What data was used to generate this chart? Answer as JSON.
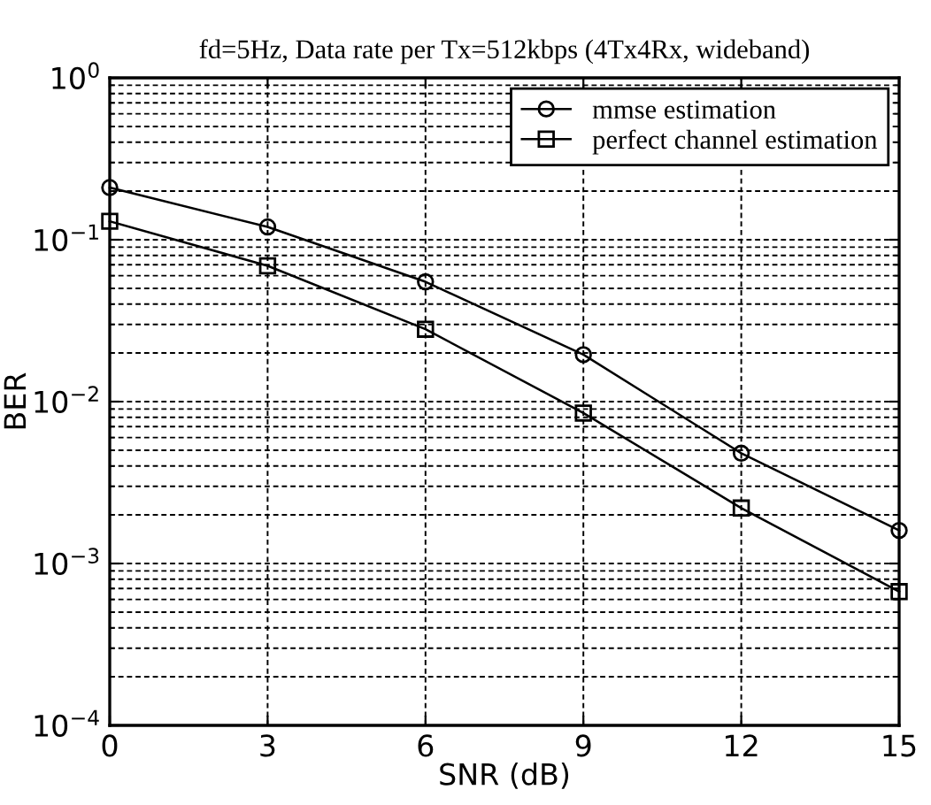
{
  "chart_data": {
    "type": "line",
    "title": "fd=5Hz, Data rate per Tx=512kbps (4Tx4Rx, wideband)",
    "xlabel": "SNR (dB)",
    "ylabel": "BER",
    "x": [
      0,
      3,
      6,
      9,
      12,
      15
    ],
    "series": [
      {
        "name": "mmse estimation",
        "color": "#000000",
        "marker": "circle",
        "values": [
          0.21,
          0.12,
          0.055,
          0.0195,
          0.0048,
          0.0016
        ]
      },
      {
        "name": "perfect channel estimation",
        "color": "#000000",
        "marker": "square",
        "values": [
          0.13,
          0.069,
          0.028,
          0.0085,
          0.0022,
          0.00067
        ]
      }
    ],
    "log": "y",
    "xlim": [
      0,
      15
    ],
    "xticks": [
      0,
      3,
      6,
      9,
      12,
      15
    ],
    "ylim": [
      0.0001,
      1
    ],
    "yticks": [
      {
        "value": 0.0001,
        "label": "10$^{−4}$"
      },
      {
        "value": 0.001,
        "label": "10$^{−3}$"
      },
      {
        "value": 0.01,
        "label": "10$^{−2}$"
      },
      {
        "value": 0.1,
        "label": "10$^{−1}$"
      },
      {
        "value": 1,
        "label": "10$^{0}$"
      }
    ],
    "grid": true,
    "legend": "top right",
    "line_style": "solid"
  }
}
